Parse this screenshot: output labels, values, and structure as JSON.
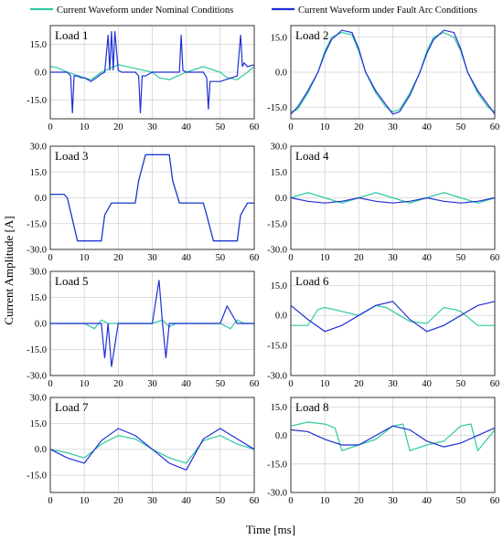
{
  "legend": {
    "nominal": "Current Waveform under Nominal Conditions",
    "fault": "Current Waveform under Fault Arc Conditions"
  },
  "colors": {
    "nominal": "#2ec9a0",
    "fault": "#1f2fd6",
    "grid": "#d2d2d2"
  },
  "xlabel": "Time  [ms]",
  "ylabel": "Current Amplitude  [A]",
  "chart_data": [
    {
      "type": "line",
      "label": "Load 1",
      "xlim": [
        0,
        60
      ],
      "ylim": [
        -25,
        25
      ],
      "yticks": [
        -15,
        0,
        15
      ],
      "xticks": [
        0,
        10,
        20,
        30,
        40,
        50,
        60
      ],
      "series": [
        {
          "name": "Current Waveform under Nominal Conditions",
          "kind": "nominal",
          "x": [
            0,
            2,
            5,
            10,
            12,
            15,
            20,
            25,
            30,
            32,
            35,
            40,
            45,
            50,
            52,
            55,
            58,
            60
          ],
          "y": [
            3,
            2.5,
            0,
            -3,
            -4,
            0,
            4,
            2,
            0,
            -3,
            -4,
            0,
            3,
            0,
            -3,
            -4,
            0,
            3
          ]
        },
        {
          "name": "Current Waveform under Fault Arc Conditions",
          "kind": "fault",
          "x": [
            0,
            5,
            6,
            6.5,
            7,
            8,
            9,
            10,
            12,
            15,
            16,
            17,
            17.5,
            18,
            18.5,
            19,
            20,
            21,
            22,
            25,
            26,
            26.5,
            27,
            28,
            30,
            35,
            38,
            38.5,
            39,
            40,
            45,
            46,
            46.5,
            47,
            48,
            50,
            55,
            56,
            56.5,
            57,
            58,
            60
          ],
          "y": [
            0,
            0,
            -2,
            -22,
            -2,
            -2,
            -3,
            -3,
            -5,
            -1,
            0,
            20,
            1,
            22,
            1,
            22,
            1,
            0,
            0,
            0,
            -2,
            -22,
            -2,
            -2,
            0,
            0,
            0,
            20,
            1,
            0,
            0,
            -3,
            -20,
            -5,
            -5,
            -5,
            -2,
            20,
            3,
            5,
            3,
            4
          ]
        }
      ]
    },
    {
      "type": "line",
      "label": "Load 2",
      "xlim": [
        0,
        60
      ],
      "ylim": [
        -20,
        20
      ],
      "yticks": [
        -15,
        0,
        15
      ],
      "xticks": [
        0,
        10,
        20,
        30,
        40,
        50,
        60
      ],
      "series": [
        {
          "name": "Current Waveform under Nominal Conditions",
          "kind": "nominal",
          "x": [
            0,
            2,
            5,
            8,
            10,
            12,
            15,
            18,
            20,
            22,
            25,
            28,
            30,
            32,
            35,
            38,
            40,
            42,
            45,
            48,
            50,
            52,
            55,
            58,
            60
          ],
          "y": [
            -17,
            -16,
            -9,
            0,
            9,
            15,
            17,
            16,
            9,
            0,
            -9,
            -15,
            -17,
            -16,
            -9,
            0,
            9,
            15,
            17,
            15,
            9,
            0,
            -9,
            -15,
            -17
          ]
        },
        {
          "name": "Current Waveform under Fault Arc Conditions",
          "kind": "fault",
          "x": [
            0,
            2,
            5,
            8,
            10,
            12,
            15,
            18,
            20,
            22,
            25,
            28,
            30,
            32,
            35,
            38,
            40,
            42,
            45,
            48,
            50,
            52,
            55,
            58,
            60
          ],
          "y": [
            -18,
            -15,
            -8,
            0,
            8,
            14,
            18,
            17,
            10,
            0,
            -8,
            -14,
            -18,
            -17,
            -10,
            0,
            8,
            14,
            18,
            17,
            10,
            0,
            -8,
            -14,
            -18
          ]
        }
      ]
    },
    {
      "type": "line",
      "label": "Load 3",
      "xlim": [
        0,
        60
      ],
      "ylim": [
        -30,
        30
      ],
      "yticks": [
        -30,
        -15,
        0,
        15,
        30
      ],
      "xticks": [
        0,
        10,
        20,
        30,
        40,
        50,
        60
      ],
      "series": [
        {
          "name": "Current Waveform under Nominal Conditions",
          "kind": "nominal",
          "x": [
            0,
            4,
            5,
            8,
            10,
            15,
            16,
            18,
            20,
            25,
            26,
            28,
            30,
            35,
            36,
            38,
            40,
            45,
            46,
            48,
            50,
            55,
            56,
            58,
            60
          ],
          "y": [
            2,
            2,
            0,
            -25,
            -25,
            -25,
            -10,
            -3,
            -3,
            -3,
            10,
            25,
            25,
            25,
            10,
            -3,
            -3,
            -3,
            -10,
            -25,
            -25,
            -25,
            -10,
            -3,
            -3
          ]
        },
        {
          "name": "Current Waveform under Fault Arc Conditions",
          "kind": "fault",
          "x": [
            0,
            4,
            5,
            8,
            10,
            15,
            16,
            18,
            20,
            25,
            26,
            28,
            30,
            35,
            36,
            38,
            40,
            45,
            46,
            48,
            50,
            55,
            56,
            58,
            60
          ],
          "y": [
            2,
            2,
            0,
            -25,
            -25,
            -25,
            -10,
            -3,
            -3,
            -3,
            10,
            25,
            25,
            25,
            10,
            -3,
            -3,
            -3,
            -10,
            -25,
            -25,
            -25,
            -10,
            -3,
            -3
          ]
        }
      ]
    },
    {
      "type": "line",
      "label": "Load 4",
      "xlim": [
        0,
        60
      ],
      "ylim": [
        -30,
        30
      ],
      "yticks": [
        -30,
        -15,
        0,
        15,
        30
      ],
      "xticks": [
        0,
        10,
        20,
        30,
        40,
        50,
        60
      ],
      "series": [
        {
          "name": "Current Waveform under Nominal Conditions",
          "kind": "nominal",
          "x": [
            0,
            5,
            10,
            15,
            20,
            25,
            30,
            35,
            40,
            45,
            50,
            55,
            60
          ],
          "y": [
            0,
            3,
            0,
            -3,
            0,
            3,
            0,
            -3,
            0,
            3,
            0,
            -3,
            0
          ]
        },
        {
          "name": "Current Waveform under Fault Arc Conditions",
          "kind": "fault",
          "x": [
            0,
            5,
            10,
            15,
            20,
            25,
            30,
            35,
            40,
            45,
            50,
            55,
            60
          ],
          "y": [
            0,
            -2,
            -3,
            -2,
            0,
            -2,
            -3,
            -2,
            0,
            -2,
            -3,
            -2,
            0
          ]
        }
      ]
    },
    {
      "type": "line",
      "label": "Load 5",
      "xlim": [
        0,
        60
      ],
      "ylim": [
        -30,
        30
      ],
      "yticks": [
        -30,
        -15,
        0,
        15,
        30
      ],
      "xticks": [
        0,
        10,
        20,
        30,
        40,
        50,
        60
      ],
      "series": [
        {
          "name": "Current Waveform under Nominal Conditions",
          "kind": "nominal",
          "x": [
            0,
            5,
            10,
            13,
            15,
            17,
            20,
            25,
            30,
            33,
            35,
            37,
            40,
            45,
            50,
            53,
            55,
            57,
            60
          ],
          "y": [
            0,
            0,
            0,
            -3,
            2,
            0,
            0,
            0,
            0,
            2,
            -2,
            0,
            0,
            0,
            0,
            -3,
            2,
            0,
            0
          ]
        },
        {
          "name": "Current Waveform under Fault Arc Conditions",
          "kind": "fault",
          "x": [
            0,
            5,
            10,
            15,
            16,
            17,
            18,
            20,
            25,
            30,
            32,
            33,
            34,
            35,
            40,
            45,
            50,
            52,
            55,
            58,
            60
          ],
          "y": [
            0,
            0,
            0,
            0,
            -20,
            0,
            -25,
            0,
            0,
            0,
            25,
            0,
            -20,
            0,
            0,
            0,
            0,
            10,
            0,
            0,
            0
          ]
        }
      ]
    },
    {
      "type": "line",
      "label": "Load 6",
      "xlim": [
        0,
        60
      ],
      "ylim": [
        -30,
        22
      ],
      "yticks": [
        -30,
        -15,
        0,
        15
      ],
      "xticks": [
        0,
        10,
        20,
        30,
        40,
        50,
        60
      ],
      "series": [
        {
          "name": "Current Waveform under Nominal Conditions",
          "kind": "nominal",
          "x": [
            0,
            5,
            8,
            10,
            15,
            20,
            25,
            28,
            30,
            35,
            40,
            45,
            48,
            50,
            55,
            60
          ],
          "y": [
            -5,
            -5,
            3,
            4,
            2,
            0,
            5,
            4,
            2,
            -3,
            -4,
            4,
            3,
            2,
            -5,
            -5
          ]
        },
        {
          "name": "Current Waveform under Fault Arc Conditions",
          "kind": "fault",
          "x": [
            0,
            5,
            10,
            15,
            20,
            25,
            30,
            35,
            40,
            45,
            50,
            55,
            60
          ],
          "y": [
            5,
            -2,
            -8,
            -5,
            0,
            5,
            7,
            -2,
            -8,
            -5,
            0,
            5,
            7
          ]
        }
      ]
    },
    {
      "type": "line",
      "label": "Load 7",
      "xlim": [
        0,
        60
      ],
      "ylim": [
        -25,
        30
      ],
      "yticks": [
        -15,
        0,
        15,
        30
      ],
      "xticks": [
        0,
        10,
        20,
        30,
        40,
        50,
        60
      ],
      "series": [
        {
          "name": "Current Waveform under Nominal Conditions",
          "kind": "nominal",
          "x": [
            0,
            5,
            10,
            15,
            20,
            25,
            30,
            35,
            40,
            45,
            50,
            55,
            60
          ],
          "y": [
            0,
            -2,
            -5,
            3,
            8,
            6,
            0,
            -5,
            -8,
            5,
            8,
            3,
            0
          ]
        },
        {
          "name": "Current Waveform under Fault Arc Conditions",
          "kind": "fault",
          "x": [
            0,
            5,
            10,
            15,
            20,
            25,
            30,
            35,
            40,
            45,
            50,
            55,
            60
          ],
          "y": [
            0,
            -5,
            -8,
            5,
            12,
            8,
            0,
            -8,
            -12,
            6,
            12,
            6,
            0
          ]
        }
      ]
    },
    {
      "type": "line",
      "label": "Load 8",
      "xlim": [
        0,
        60
      ],
      "ylim": [
        -30,
        20
      ],
      "yticks": [
        -30,
        -15,
        0,
        15
      ],
      "xticks": [
        0,
        10,
        20,
        30,
        40,
        50,
        60
      ],
      "series": [
        {
          "name": "Current Waveform under Nominal Conditions",
          "kind": "nominal",
          "x": [
            0,
            5,
            10,
            13,
            15,
            20,
            25,
            30,
            33,
            35,
            40,
            45,
            50,
            53,
            55,
            60
          ],
          "y": [
            5,
            7,
            6,
            4,
            -8,
            -5,
            -2,
            5,
            6,
            -8,
            -5,
            -3,
            5,
            6,
            -8,
            3
          ]
        },
        {
          "name": "Current Waveform under Fault Arc Conditions",
          "kind": "fault",
          "x": [
            0,
            5,
            10,
            15,
            20,
            25,
            30,
            35,
            40,
            45,
            50,
            55,
            60
          ],
          "y": [
            3,
            2,
            -2,
            -5,
            -5,
            0,
            5,
            3,
            -3,
            -6,
            -4,
            0,
            4
          ]
        }
      ]
    }
  ]
}
